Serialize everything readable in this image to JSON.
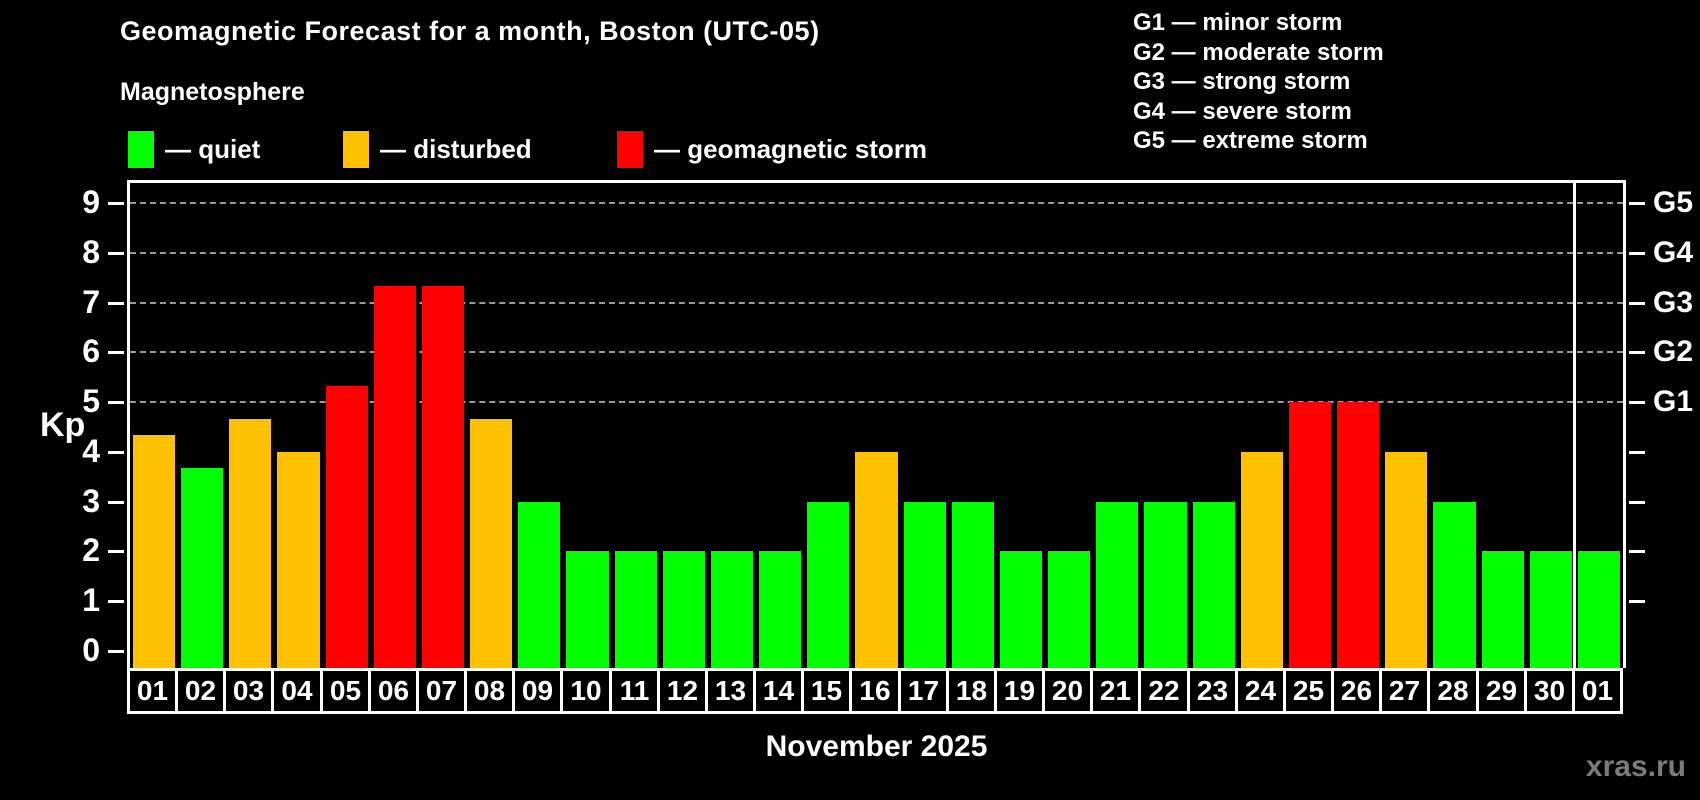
{
  "colors": {
    "quiet": "#00ff00",
    "disturbed": "#ffc000",
    "storm": "#ff0000",
    "axis": "#ffffff",
    "gridline": "#9a9a9a",
    "background": "#000000",
    "watermark": "#7b7b7b"
  },
  "legend": {
    "items": [
      {
        "key": "quiet",
        "label": "— quiet"
      },
      {
        "key": "disturbed",
        "label": "— disturbed"
      },
      {
        "key": "storm",
        "label": "— geomagnetic storm"
      }
    ]
  },
  "g_scale_legend": {
    "items": [
      "G1 — minor storm",
      "G2 — moderate storm",
      "G3 — strong storm",
      "G4 — severe storm",
      "G5 — extreme storm"
    ]
  },
  "chart_data": {
    "type": "bar",
    "title": "Geomagnetic Forecast for a month, Boston (UTC-05)",
    "subtitle": "Magnetosphere",
    "xlabel": "November 2025",
    "ylabel": "Kp",
    "ylim": [
      0,
      9
    ],
    "yticks": [
      0,
      1,
      2,
      3,
      4,
      5,
      6,
      7,
      8,
      9
    ],
    "gridlines_at": [
      5,
      6,
      7,
      8,
      9
    ],
    "grid": "dashed, only at storm levels G1-G5",
    "legend_position": "top-left",
    "right_axis_labels": [
      {
        "kp": 5,
        "label": "G1"
      },
      {
        "kp": 6,
        "label": "G2"
      },
      {
        "kp": 7,
        "label": "G3"
      },
      {
        "kp": 8,
        "label": "G4"
      },
      {
        "kp": 9,
        "label": "G5"
      }
    ],
    "categories": [
      "01",
      "02",
      "03",
      "04",
      "05",
      "06",
      "07",
      "08",
      "09",
      "10",
      "11",
      "12",
      "13",
      "14",
      "15",
      "16",
      "17",
      "18",
      "19",
      "20",
      "21",
      "22",
      "23",
      "24",
      "25",
      "26",
      "27",
      "28",
      "29",
      "30",
      "01"
    ],
    "values": [
      4.33,
      3.67,
      4.67,
      4,
      5.33,
      7.33,
      7.33,
      4.67,
      3,
      2,
      2,
      2,
      2,
      2,
      3,
      4,
      3,
      3,
      2,
      2,
      3,
      3,
      3,
      4,
      5,
      5,
      4,
      3,
      2,
      2,
      2
    ],
    "statuses": [
      "disturbed",
      "quiet",
      "disturbed",
      "disturbed",
      "storm",
      "storm",
      "storm",
      "disturbed",
      "quiet",
      "quiet",
      "quiet",
      "quiet",
      "quiet",
      "quiet",
      "quiet",
      "disturbed",
      "quiet",
      "quiet",
      "quiet",
      "quiet",
      "quiet",
      "quiet",
      "quiet",
      "disturbed",
      "storm",
      "storm",
      "disturbed",
      "quiet",
      "quiet",
      "quiet",
      "quiet"
    ],
    "month_separator_after_index": 29
  },
  "footer": {
    "watermark": "xras.ru"
  }
}
